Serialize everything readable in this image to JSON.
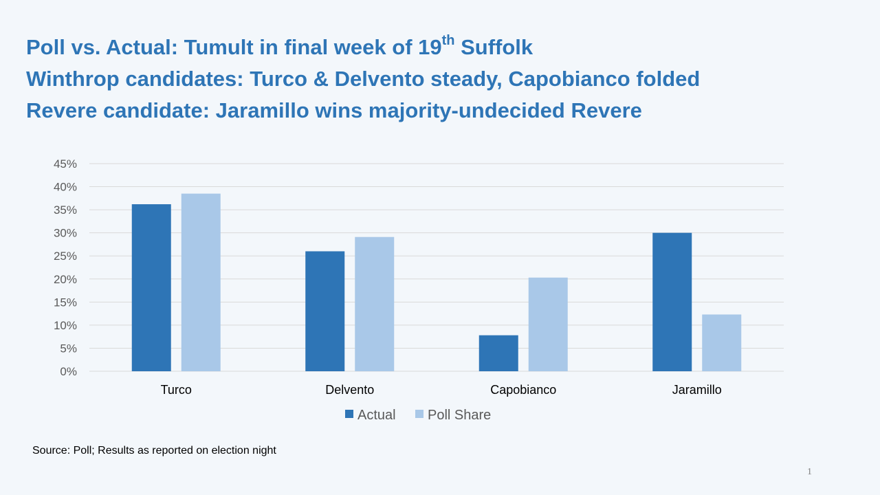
{
  "slide": {
    "title_line1_a": "Poll vs. Actual: Tumult in final week of 19",
    "title_line1_sup": "th",
    "title_line1_b": " Suffolk",
    "title_line2": "Winthrop candidates: Turco & Delvento steady, Capobianco folded",
    "title_line3": "Revere candidate: Jaramillo wins majority-undecided Revere",
    "source": "Source: Poll; Results as reported on election night",
    "page_number": "1"
  },
  "chart_data": {
    "type": "bar",
    "categories": [
      "Turco",
      "Delvento",
      "Capobianco",
      "Jaramillo"
    ],
    "series": [
      {
        "name": "Actual",
        "values": [
          36.2,
          26.0,
          7.8,
          30.0
        ],
        "color": "#2e75b6"
      },
      {
        "name": "Poll Share",
        "values": [
          38.5,
          29.1,
          20.3,
          12.3
        ],
        "color": "#a9c8e8"
      }
    ],
    "ylim": [
      0,
      45
    ],
    "y_ticks": [
      "0%",
      "5%",
      "10%",
      "15%",
      "20%",
      "25%",
      "30%",
      "35%",
      "40%",
      "45%"
    ],
    "y_tick_values": [
      0,
      5,
      10,
      15,
      20,
      25,
      30,
      35,
      40,
      45
    ],
    "grid": true,
    "legend_position": "bottom"
  }
}
